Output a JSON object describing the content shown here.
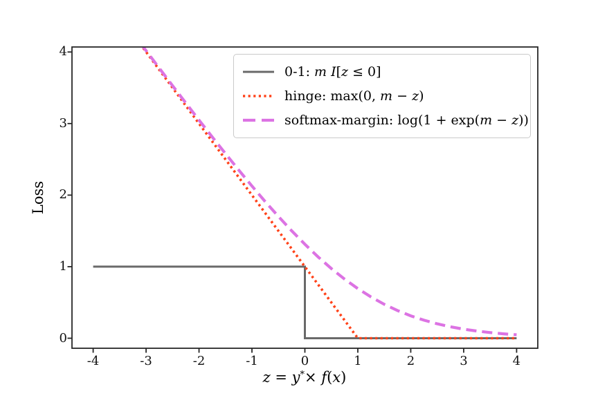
{
  "figure": {
    "background": "#ffffff"
  },
  "chart_data": {
    "type": "line",
    "title": "",
    "ylabel": "Loss",
    "xlabel_text": "z = y* × f(x)",
    "xlabel_parts": [
      {
        "t": "z",
        "i": true
      },
      {
        "t": " = ",
        "i": false
      },
      {
        "t": "y",
        "i": true
      },
      {
        "t": "*",
        "i": true,
        "sup": true
      },
      {
        "t": "× ",
        "i": false
      },
      {
        "t": "f",
        "i": true
      },
      {
        "t": "(",
        "i": false
      },
      {
        "t": "x",
        "i": true
      },
      {
        "t": ")",
        "i": false
      }
    ],
    "xlim": [
      -4.4,
      4.4
    ],
    "ylim": [
      -0.14,
      4.07
    ],
    "xticks": [
      "-4",
      "-3",
      "-2",
      "-1",
      "0",
      "1",
      "2",
      "3",
      "4"
    ],
    "yticks": [
      "0",
      "1",
      "2",
      "3",
      "4"
    ],
    "grid": false,
    "legend_position": "upper right",
    "margin_m": 1,
    "axis_color": "#262626",
    "series": [
      {
        "name": "0-1",
        "label": "0-1: m I[z ≤ 0]",
        "label_parts": [
          {
            "t": "0-1: ",
            "i": false
          },
          {
            "t": "m I",
            "i": true
          },
          {
            "t": "[",
            "i": false
          },
          {
            "t": "z",
            "i": true
          },
          {
            "t": " ≤ 0]",
            "i": false
          }
        ],
        "color": "#696969",
        "style": "solid",
        "points": [
          [
            -4,
            1
          ],
          [
            0,
            1
          ],
          [
            0,
            0
          ],
          [
            4,
            0
          ]
        ]
      },
      {
        "name": "hinge",
        "label": "hinge: max(0, m − z)",
        "label_parts": [
          {
            "t": "hinge: max(0, ",
            "i": false
          },
          {
            "t": "m",
            "i": true
          },
          {
            "t": " − ",
            "i": false
          },
          {
            "t": "z",
            "i": true
          },
          {
            "t": ")",
            "i": false
          }
        ],
        "color": "#FF4219",
        "style": "dotted",
        "points": [
          [
            -4,
            5
          ],
          [
            -3,
            4
          ],
          [
            -2,
            3
          ],
          [
            -1,
            2
          ],
          [
            0,
            1
          ],
          [
            1,
            0
          ],
          [
            4,
            0
          ]
        ]
      },
      {
        "name": "softmax-margin",
        "label": "softmax-margin: log(1 + exp(m − z))",
        "label_parts": [
          {
            "t": "softmax-margin: log(1 + exp(",
            "i": false
          },
          {
            "t": "m",
            "i": true
          },
          {
            "t": " − ",
            "i": false
          },
          {
            "t": "z",
            "i": true
          },
          {
            "t": "))",
            "i": false
          }
        ],
        "color": "#DC73E3",
        "style": "dashed",
        "points": [
          [
            -4,
            5.0067
          ],
          [
            -3.75,
            4.7586
          ],
          [
            -3.5,
            4.511
          ],
          [
            -3.25,
            4.2641
          ],
          [
            -3,
            4.0181
          ],
          [
            -2.75,
            3.7731
          ],
          [
            -2.5,
            3.5297
          ],
          [
            -2.25,
            3.288
          ],
          [
            -2,
            3.0486
          ],
          [
            -1.75,
            2.8121
          ],
          [
            -1.5,
            2.5789
          ],
          [
            -1.25,
            2.3502
          ],
          [
            -1,
            2.1269
          ],
          [
            -0.75,
            1.9102
          ],
          [
            -0.5,
            1.7014
          ],
          [
            -0.25,
            1.5019
          ],
          [
            0,
            1.3133
          ],
          [
            0.25,
            1.1369
          ],
          [
            0.5,
            0.9741
          ],
          [
            0.75,
            0.8259
          ],
          [
            1,
            0.6931
          ],
          [
            1.25,
            0.576
          ],
          [
            1.5,
            0.4741
          ],
          [
            1.75,
            0.3869
          ],
          [
            2,
            0.3133
          ],
          [
            2.25,
            0.2519
          ],
          [
            2.5,
            0.2014
          ],
          [
            2.75,
            0.1602
          ],
          [
            3,
            0.1269
          ],
          [
            3.25,
            0.1002
          ],
          [
            3.5,
            0.0789
          ],
          [
            3.75,
            0.062
          ],
          [
            4,
            0.0486
          ]
        ]
      }
    ]
  }
}
